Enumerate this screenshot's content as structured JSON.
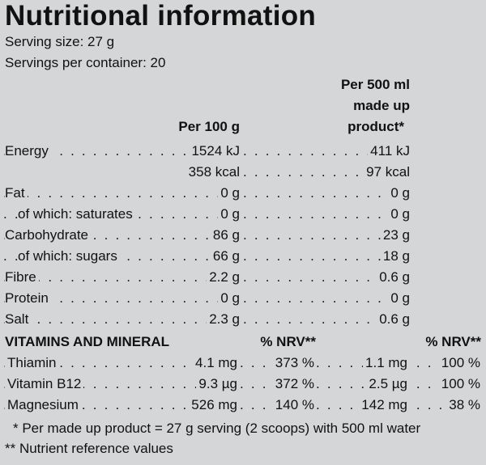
{
  "title": "Nutritional information",
  "serving_size": "Serving size: 27 g",
  "servings_per_container": "Servings per container: 20",
  "col_headers": {
    "per100": "Per 100 g",
    "per500_l1": "Per 500 ml",
    "per500_l2": "made up",
    "per500_l3": "product*"
  },
  "nutrients": [
    {
      "label": "Energy",
      "per100": "1524 kJ",
      "per500": "411 kJ",
      "indent": false
    },
    {
      "label": "",
      "per100": "358 kcal",
      "per500": "97 kcal",
      "indent": false
    },
    {
      "label": "Fat",
      "per100": "0 g",
      "per500": "0 g",
      "indent": false
    },
    {
      "label": "of which: saturates",
      "per100": "0 g",
      "per500": "0 g",
      "indent": true
    },
    {
      "label": "Carbohydrate",
      "per100": "86 g",
      "per500": "23 g",
      "indent": false
    },
    {
      "label": "of which: sugars",
      "per100": "66 g",
      "per500": "18 g",
      "indent": true
    },
    {
      "label": "Fibre",
      "per100": "2.2 g",
      "per500": "0.6 g",
      "indent": false
    },
    {
      "label": "Protein",
      "per100": "0 g",
      "per500": "0 g",
      "indent": false
    },
    {
      "label": "Salt",
      "per100": "2.3 g",
      "per500": "0.6 g",
      "indent": false
    }
  ],
  "vitamins_header": {
    "label": "VITAMINS AND MINERAL",
    "nrv1": "% NRV**",
    "nrv2": "% NRV**"
  },
  "vitamins": [
    {
      "label": "Thiamin",
      "per100": "4.1 mg",
      "nrv100": "373 %",
      "per500": "1.1 mg",
      "nrv500": "100 %"
    },
    {
      "label": "Vitamin B12",
      "per100": "9.3 µg",
      "nrv100": "372 %",
      "per500": "2.5 µg",
      "nrv500": "100 %"
    },
    {
      "label": "Magnesium",
      "per100": "526 mg",
      "nrv100": "140 %",
      "per500": "142 mg",
      "nrv500": "38 %"
    }
  ],
  "footnotes": {
    "f1": "* Per made up product = 27 g serving (2 scoops) with 500 ml water",
    "f2": "** Nutrient reference values"
  }
}
